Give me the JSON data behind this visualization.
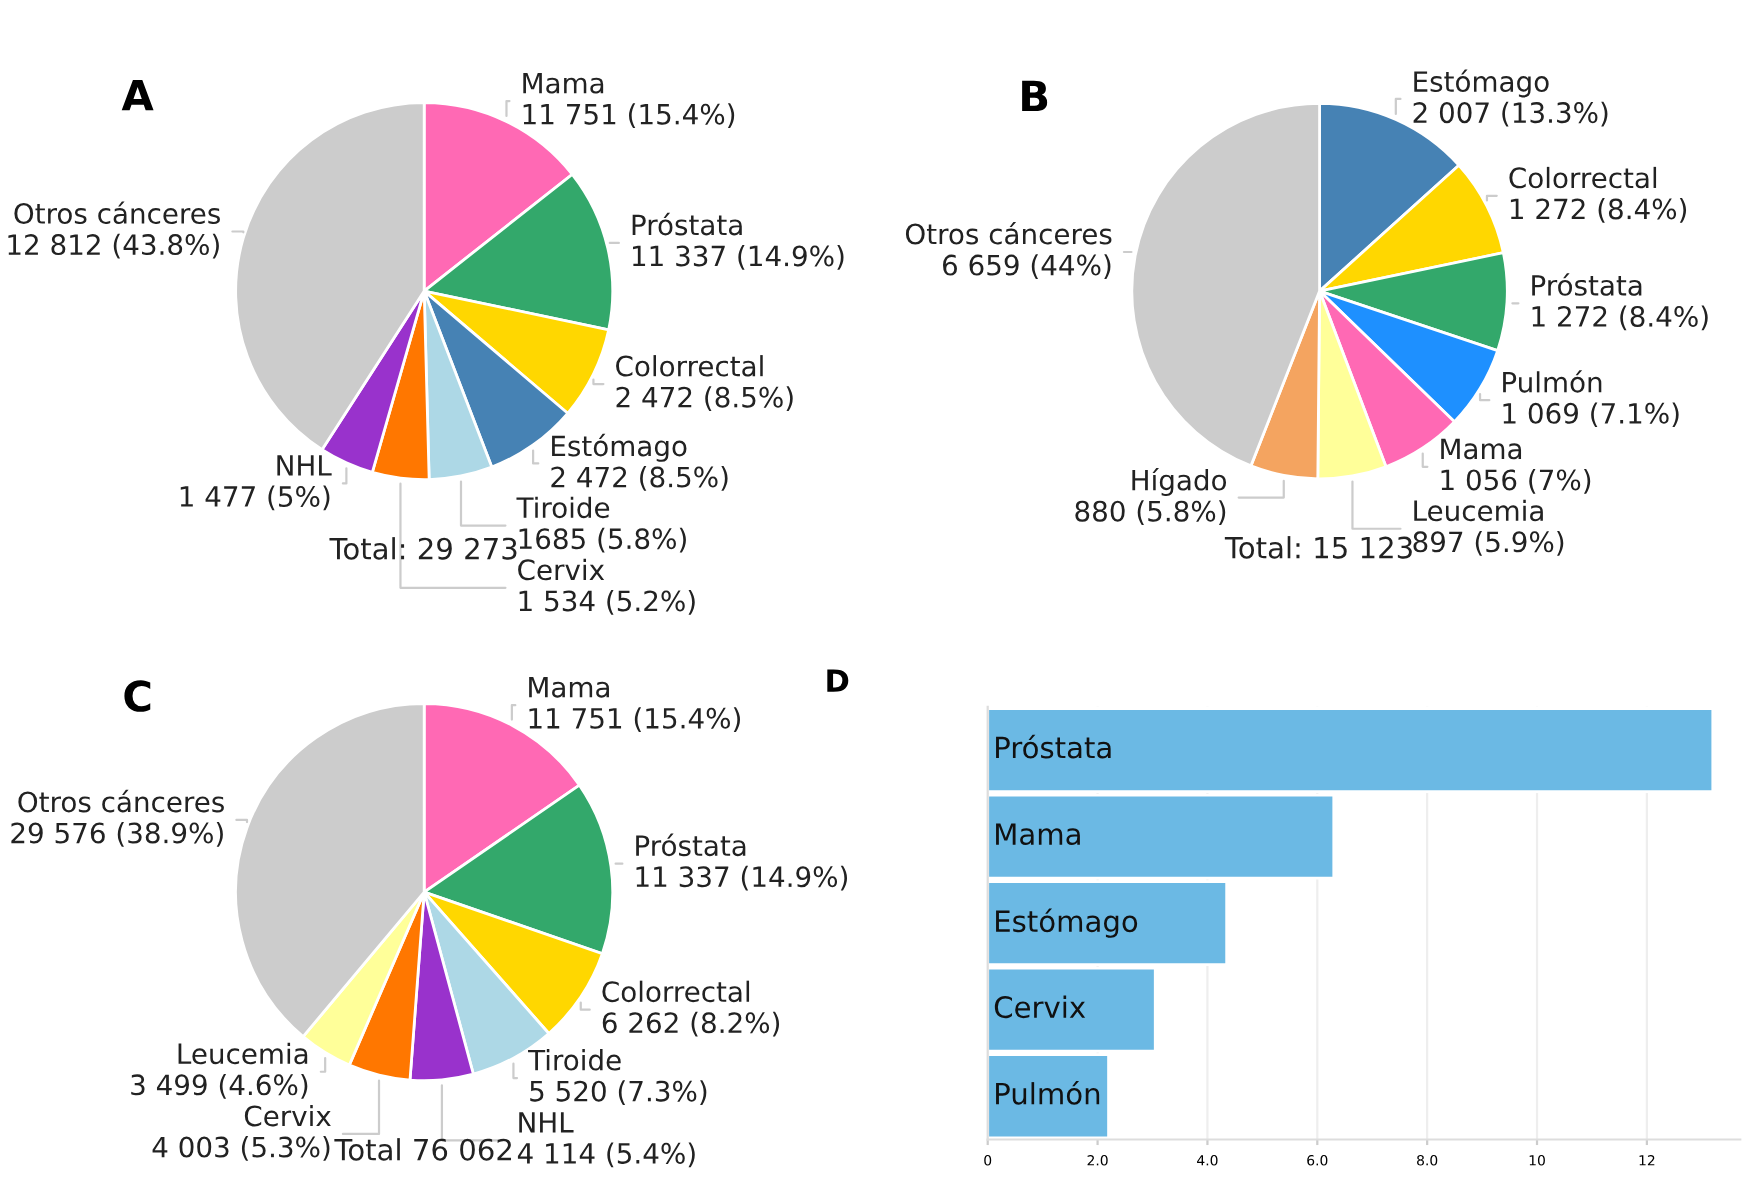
{
  "chart_data": [
    {
      "type": "pie",
      "title": "A",
      "categories": [
        "Mama",
        "Próstata",
        "Colorrectal",
        "Estómago",
        "Tiroide",
        "Cervix",
        "NHL",
        "Otros cánceres"
      ],
      "values": [
        15.4,
        14.9,
        8.5,
        8.5,
        5.8,
        5.2,
        5,
        43.8
      ],
      "value_labels": [
        "11 751 (15.4%)",
        "11 337 (14.9%)",
        "2 472 (8.5%)",
        "2 472 (8.5%)",
        "1685 (5.8%)",
        "1 534 (5.2%)",
        "1 477 (5%)",
        "12 812 (43.8%)"
      ],
      "colors": [
        "#ff69b4",
        "#33a86b",
        "#ffd700",
        "#4682b4",
        "#add8e6",
        "#ff7700",
        "#9932cc",
        "#cccccc"
      ],
      "annotations": [
        "Total: 29 273"
      ]
    },
    {
      "type": "pie",
      "title": "B",
      "categories": [
        "Estómago",
        "Colorrectal",
        "Próstata",
        "Pulmón",
        "Mama",
        "Leucemia",
        "Hígado",
        "Otros cánceres"
      ],
      "values": [
        13.3,
        8.4,
        8.4,
        7.1,
        7,
        5.9,
        5.8,
        44
      ],
      "value_labels": [
        "2 007 (13.3%)",
        "1 272 (8.4%)",
        "1 272 (8.4%)",
        "1 069 (7.1%)",
        "1 056 (7%)",
        "897 (5.9%)",
        "880 (5.8%)",
        "6 659 (44%)"
      ],
      "colors": [
        "#4682b4",
        "#ffd700",
        "#33a86b",
        "#1e90ff",
        "#ff69b4",
        "#ffff99",
        "#f4a460",
        "#cccccc"
      ],
      "annotations": [
        "Total: 15 123"
      ]
    },
    {
      "type": "pie",
      "title": "C",
      "categories": [
        "Mama",
        "Próstata",
        "Colorrectal",
        "Tiroide",
        "NHL",
        "Cervix",
        "Leucemia",
        "Otros cánceres"
      ],
      "values": [
        15.4,
        14.9,
        8.2,
        7.3,
        5.4,
        5.3,
        4.6,
        38.9
      ],
      "value_labels": [
        "11 751 (15.4%)",
        "11 337 (14.9%)",
        "6 262 (8.2%)",
        "5 520 (7.3%)",
        "4 114 (5.4%)",
        "4 003 (5.3%)",
        "3 499 (4.6%)",
        "29 576 (38.9%)"
      ],
      "colors": [
        "#ff69b4",
        "#33a86b",
        "#ffd700",
        "#add8e6",
        "#9932cc",
        "#ff7700",
        "#ffff99",
        "#cccccc"
      ],
      "annotations": [
        "Total 76 062"
      ]
    },
    {
      "type": "bar",
      "title": "D",
      "orientation": "horizontal",
      "categories": [
        "Próstata",
        "Mama",
        "Estómago",
        "Cervix",
        "Pulmón"
      ],
      "values": [
        13.2,
        6.3,
        4.35,
        3.05,
        2.2
      ],
      "color": "#6bb9e4",
      "xlim": [
        0,
        13.7
      ],
      "xticks": [
        0,
        {
          "value": 2,
          "label": "2.0"
        },
        {
          "value": 4,
          "label": "4.0"
        },
        {
          "value": 6,
          "label": "6.0"
        },
        {
          "value": 8,
          "label": "8.0"
        },
        10,
        12
      ],
      "grid": "x",
      "tick_labels": "x"
    }
  ]
}
